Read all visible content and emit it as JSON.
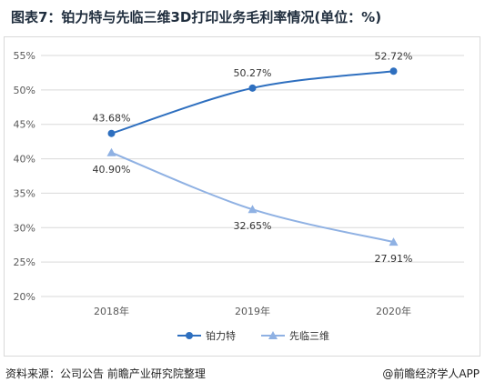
{
  "title": "图表7：铂力特与先临三维3D打印业务毛利率情况(单位：%)",
  "footer": {
    "source": "资料来源：公司公告 前瞻产业研究院整理",
    "brand": "@前瞻经济学人APP"
  },
  "colors": {
    "series1": "#2e6fbf",
    "series2": "#8fb1e3",
    "grid": "#d9d9d9",
    "tick": "#595959"
  },
  "chart_data": {
    "type": "line",
    "x": [
      "2018年",
      "2019年",
      "2020年"
    ],
    "ylim": [
      20,
      55
    ],
    "yticks": [
      "20%",
      "25%",
      "30%",
      "35%",
      "40%",
      "45%",
      "50%",
      "55%"
    ],
    "grid": true,
    "legend": "bottom",
    "series": [
      {
        "name": "铂力特",
        "values": [
          43.68,
          50.27,
          52.72
        ],
        "labels": [
          "43.68%",
          "50.27%",
          "52.72%"
        ],
        "marker": "circle"
      },
      {
        "name": "先临三维",
        "values": [
          40.9,
          32.65,
          27.91
        ],
        "labels": [
          "40.90%",
          "32.65%",
          "27.91%"
        ],
        "marker": "triangle"
      }
    ]
  }
}
